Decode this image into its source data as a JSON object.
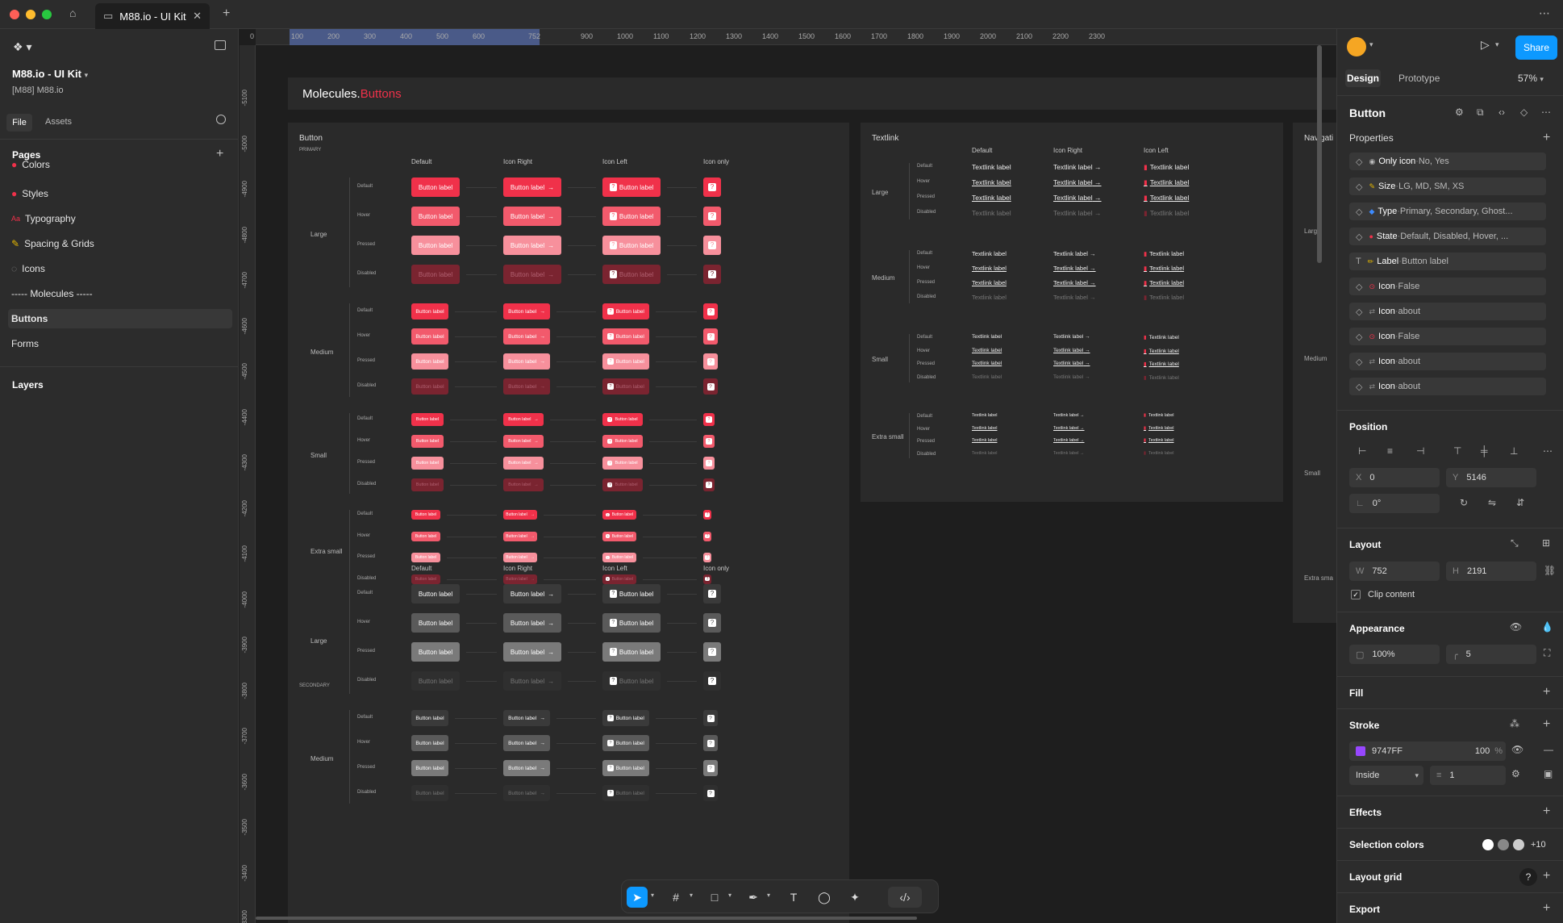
{
  "window": {
    "tab_title": "M88.io - UI Kit",
    "tab_icon": "book-icon"
  },
  "sidebar": {
    "file_name": "M88.io - UI Kit",
    "team": "[M88] M88.io",
    "tabs": [
      "File",
      "Assets"
    ],
    "pages_title": "Pages",
    "pages": [
      "Colors",
      "Styles",
      "Typography",
      "Spacing & Grids",
      "Icons",
      "----- Molecules -----",
      "Buttons",
      "Forms"
    ],
    "layers_title": "Layers"
  },
  "ruler": {
    "top_ticks": [
      "0",
      "100",
      "200",
      "300",
      "400",
      "500",
      "600",
      "752",
      "900",
      "1000",
      "1100",
      "1200",
      "1300",
      "1400",
      "1500",
      "1600",
      "1700",
      "1800",
      "1900",
      "2000",
      "2100",
      "2200",
      "2300"
    ],
    "left_ticks": [
      "-5100",
      "-5000",
      "-4900",
      "-4800",
      "-4700",
      "-4600",
      "-4500",
      "-4400",
      "-4300",
      "-4200",
      "-4100",
      "-4000",
      "-3900",
      "-3800",
      "-3700",
      "-3600",
      "-3500",
      "-3400",
      "-3300"
    ]
  },
  "canvas": {
    "header_prefix": "Molecules.",
    "header_suffix": "Buttons",
    "button_frame_title": "Button",
    "primary_label": "PRIMARY",
    "secondary_label": "SECONDARY",
    "columns": [
      "Default",
      "Icon Right",
      "Icon Left",
      "Icon only"
    ],
    "sizes": [
      "Large",
      "Medium",
      "Small",
      "Extra small"
    ],
    "states": [
      "Default",
      "Hover",
      "Pressed",
      "Disabled"
    ],
    "button_label": "Button label",
    "textlink_frame_title": "Textlink",
    "textlink_columns": [
      "Default",
      "Icon Right",
      "Icon Left"
    ],
    "textlink_label": "Textlink label",
    "nav_frame_title": "Navigati",
    "nav_sizes": [
      "Large",
      "Medium",
      "Small",
      "Extra sma"
    ]
  },
  "right": {
    "share": "Share",
    "tabs": [
      "Design",
      "Prototype"
    ],
    "zoom": "57%",
    "component_name": "Button",
    "properties_title": "Properties",
    "properties": [
      {
        "icon": "dot",
        "name": "Only icon",
        "value": "No, Yes"
      },
      {
        "icon": "ruler",
        "name": "Size",
        "value": "LG, MD, SM, XS"
      },
      {
        "icon": "diamond",
        "name": "Type",
        "value": "Primary, Secondary, Ghost..."
      },
      {
        "icon": "red-dot",
        "name": "State",
        "value": "Default, Disabled, Hover, ..."
      },
      {
        "icon": "pencil",
        "name": "Label",
        "value": "Button label"
      },
      {
        "icon": "toggle",
        "name": "Icon",
        "value": "False"
      },
      {
        "icon": "swap",
        "name": "Icon",
        "value": "about"
      },
      {
        "icon": "toggle",
        "name": "Icon",
        "value": "False"
      },
      {
        "icon": "swap",
        "name": "Icon",
        "value": "about"
      },
      {
        "icon": "swap",
        "name": "Icon",
        "value": "about"
      }
    ],
    "position_title": "Position",
    "x": "0",
    "y": "5146",
    "rotation": "0°",
    "layout_title": "Layout",
    "w": "752",
    "h": "2191",
    "clip_content": "Clip content",
    "appearance_title": "Appearance",
    "opacity": "100%",
    "radius": "5",
    "fill_title": "Fill",
    "stroke_title": "Stroke",
    "stroke_color": "9747FF",
    "stroke_color_hex": "#9747FF",
    "stroke_opacity": "100",
    "stroke_pct": "%",
    "stroke_position": "Inside",
    "stroke_weight": "1",
    "effects_title": "Effects",
    "selection_colors_title": "Selection colors",
    "selection_more": "+10",
    "layout_grid_title": "Layout grid",
    "export_title": "Export"
  },
  "colors": {
    "accent": "#0d99ff",
    "primary": "#f0314a",
    "primary_hover": "#f25a6c",
    "primary_pressed": "#f7909c",
    "primary_disabled": "#7a2430",
    "secondary": "#3a3a3a",
    "secondary_hover": "#5a5a5a",
    "secondary_pressed": "#7a7a7a"
  }
}
